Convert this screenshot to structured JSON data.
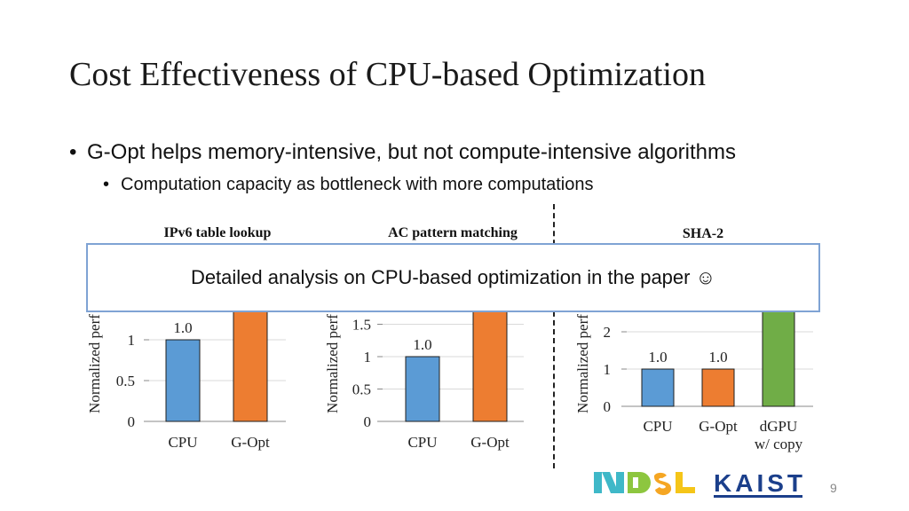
{
  "slide": {
    "title": "Cost Effectiveness of CPU-based Optimization",
    "bullet_main": "G-Opt helps memory-intensive, but not compute-intensive algorithms",
    "bullet_sub": "Computation capacity as bottleneck with more computations",
    "overlay_text": "Detailed analysis on CPU-based optimization in the paper ☺",
    "page_number": "9",
    "logos": {
      "ndsl": "NDSL",
      "kaist": "KAIST"
    }
  },
  "chart_data": [
    {
      "type": "bar",
      "title": "IPv6 table lookup",
      "ylabel": "Normalized perf",
      "categories": [
        "CPU",
        "G-Opt"
      ],
      "values": [
        1.0,
        1.9
      ],
      "data_labels": [
        "1.0",
        ""
      ],
      "colors": [
        "#5b9bd5",
        "#ed7d31"
      ],
      "yticks": [
        "0",
        "0.5",
        "1"
      ],
      "ylim": [
        0,
        2
      ]
    },
    {
      "type": "bar",
      "title": "AC pattern matching",
      "ylabel": "Normalized perf",
      "categories": [
        "CPU",
        "G-Opt"
      ],
      "values": [
        1.0,
        2.0
      ],
      "data_labels": [
        "1.0",
        ""
      ],
      "colors": [
        "#5b9bd5",
        "#ed7d31"
      ],
      "yticks": [
        "0",
        "0.5",
        "1",
        "1.5"
      ],
      "ylim": [
        0,
        2.5
      ]
    },
    {
      "type": "bar",
      "title": "SHA-2",
      "ylabel": "Normalized perf",
      "categories": [
        "CPU",
        "G-Opt",
        "dGPU\nw/ copy"
      ],
      "values": [
        1.0,
        1.0,
        3.1
      ],
      "data_labels": [
        "1.0",
        "1.0",
        ""
      ],
      "colors": [
        "#5b9bd5",
        "#ed7d31",
        "#70ad47"
      ],
      "yticks": [
        "0",
        "1",
        "2"
      ],
      "ylim": [
        0,
        3
      ]
    }
  ]
}
